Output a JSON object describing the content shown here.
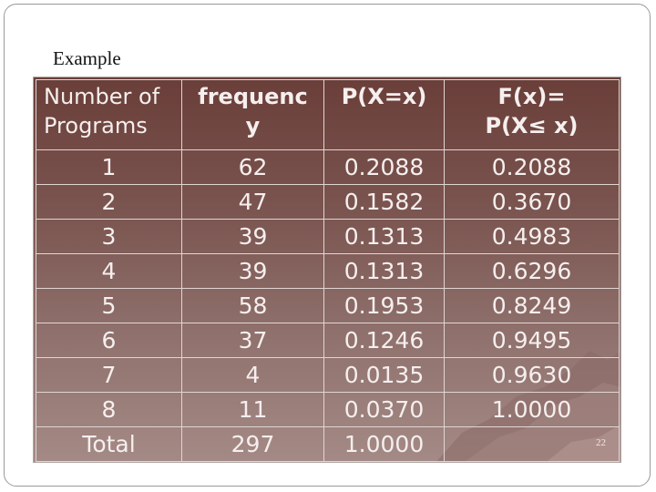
{
  "slide": {
    "title": "Example",
    "page_number": "22"
  },
  "table": {
    "headers": [
      "Number of Programs",
      "frequenc y",
      "P(X=x)",
      "F(x)= P(X≤ x)"
    ],
    "header_lines": [
      [
        "Number of",
        "Programs"
      ],
      [
        "frequenc",
        "y"
      ],
      [
        "P(X=x)",
        ""
      ],
      [
        "F(x)=",
        "P(X≤ x)"
      ]
    ],
    "rows": [
      [
        "1",
        "62",
        "0.2088",
        "0.2088"
      ],
      [
        "2",
        "47",
        "0.1582",
        "0.3670"
      ],
      [
        "3",
        "39",
        "0.1313",
        "0.4983"
      ],
      [
        "4",
        "39",
        "0.1313",
        "0.6296"
      ],
      [
        "5",
        "58",
        "0.1953",
        "0.8249"
      ],
      [
        "6",
        "37",
        "0.1246",
        "0.9495"
      ],
      [
        "7",
        "4",
        "0.0135",
        "0.9630"
      ],
      [
        "8",
        "11",
        "0.0370",
        "1.0000"
      ],
      [
        "Total",
        "297",
        "1.0000",
        ""
      ]
    ]
  }
}
